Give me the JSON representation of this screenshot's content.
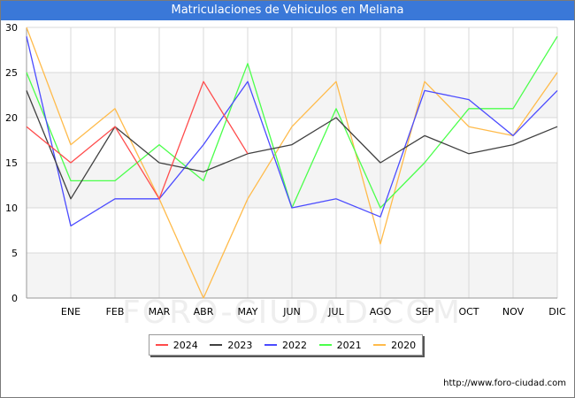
{
  "title": "Matriculaciones de Vehiculos en Meliana",
  "footer_url": "http://www.foro-ciudad.com",
  "watermark": "FORO-CIUDAD.COM",
  "chart_data": {
    "type": "line",
    "title": "Matriculaciones de Vehiculos en Meliana",
    "x": [
      "",
      "ENE",
      "FEB",
      "MAR",
      "ABR",
      "MAY",
      "JUN",
      "JUL",
      "AGO",
      "SEP",
      "OCT",
      "NOV",
      "DIC"
    ],
    "ylim": [
      0,
      30
    ],
    "yticks": [
      0,
      5,
      10,
      15,
      20,
      25,
      30
    ],
    "grid": true,
    "legend_position": "bottom",
    "series": [
      {
        "name": "2024",
        "color": "#ff4b4b",
        "values": [
          19,
          15,
          19,
          11,
          24,
          16,
          null,
          null,
          null,
          null,
          null,
          null,
          null
        ]
      },
      {
        "name": "2023",
        "color": "#404040",
        "values": [
          23,
          11,
          19,
          15,
          14,
          16,
          17,
          20,
          15,
          18,
          16,
          17,
          19
        ]
      },
      {
        "name": "2022",
        "color": "#4b4bff",
        "values": [
          29,
          8,
          11,
          11,
          17,
          24,
          10,
          11,
          9,
          23,
          22,
          18,
          23
        ]
      },
      {
        "name": "2021",
        "color": "#4bff4b",
        "values": [
          25,
          13,
          13,
          17,
          13,
          26,
          10,
          21,
          10,
          15,
          21,
          21,
          29
        ]
      },
      {
        "name": "2020",
        "color": "#ffbb4b",
        "values": [
          30,
          17,
          21,
          11,
          0,
          11,
          19,
          24,
          6,
          24,
          19,
          18,
          25
        ]
      }
    ]
  }
}
